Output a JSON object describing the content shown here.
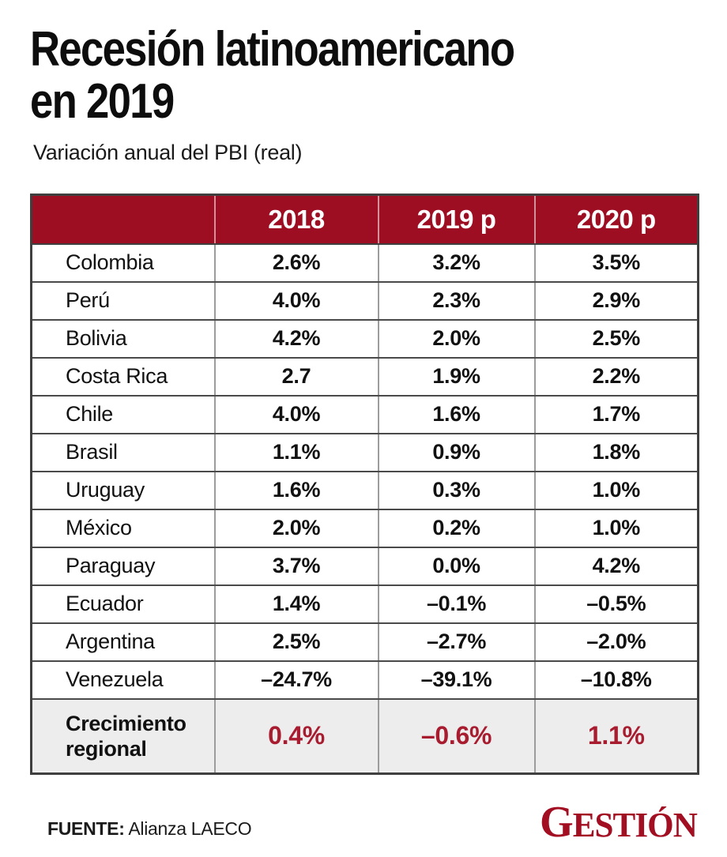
{
  "page": {
    "title_line1": "Recesión latinoamericano",
    "title_line2": "en 2019",
    "subtitle": "Variación anual del PBI (real)"
  },
  "table": {
    "headers": [
      "",
      "2018",
      "2019 p",
      "2020 p"
    ],
    "rows": [
      {
        "label": "Colombia",
        "values": [
          "2.6%",
          "3.2%",
          "3.5%"
        ]
      },
      {
        "label": "Perú",
        "values": [
          "4.0%",
          "2.3%",
          "2.9%"
        ]
      },
      {
        "label": "Bolivia",
        "values": [
          "4.2%",
          "2.0%",
          "2.5%"
        ]
      },
      {
        "label": "Costa Rica",
        "values": [
          "2.7",
          "1.9%",
          "2.2%"
        ]
      },
      {
        "label": "Chile",
        "values": [
          "4.0%",
          "1.6%",
          "1.7%"
        ]
      },
      {
        "label": "Brasil",
        "values": [
          "1.1%",
          "0.9%",
          "1.8%"
        ]
      },
      {
        "label": "Uruguay",
        "values": [
          "1.6%",
          "0.3%",
          "1.0%"
        ]
      },
      {
        "label": "México",
        "values": [
          "2.0%",
          "0.2%",
          "1.0%"
        ]
      },
      {
        "label": "Paraguay",
        "values": [
          "3.7%",
          "0.0%",
          "4.2%"
        ]
      },
      {
        "label": "Ecuador",
        "values": [
          "1.4%",
          "–0.1%",
          "–0.5%"
        ]
      },
      {
        "label": "Argentina",
        "values": [
          "2.5%",
          "–2.7%",
          "–2.0%"
        ]
      },
      {
        "label": "Venezuela",
        "values": [
          "–24.7%",
          "–39.1%",
          "–10.8%"
        ]
      }
    ],
    "summary": {
      "label": "Crecimiento regional",
      "values": [
        "0.4%",
        "–0.6%",
        "1.1%"
      ]
    }
  },
  "footer": {
    "source_label": "FUENTE:",
    "source_value": " Alianza LAECO",
    "brand": "GESTIÓN"
  },
  "colors": {
    "header_red": "#9E0E23",
    "accent_red": "#A81C30",
    "logo_red": "#A30F22",
    "summary_bg": "#EDEDED"
  },
  "chart_data": {
    "type": "table",
    "title": "Recesión latinoamericano en 2019",
    "subtitle": "Variación anual del PBI (real)",
    "columns": [
      "",
      "2018",
      "2019 p",
      "2020 p"
    ],
    "rows": [
      [
        "Colombia",
        "2.6%",
        "3.2%",
        "3.5%"
      ],
      [
        "Perú",
        "4.0%",
        "2.3%",
        "2.9%"
      ],
      [
        "Bolivia",
        "4.2%",
        "2.0%",
        "2.5%"
      ],
      [
        "Costa Rica",
        "2.7",
        "1.9%",
        "2.2%"
      ],
      [
        "Chile",
        "4.0%",
        "1.6%",
        "1.7%"
      ],
      [
        "Brasil",
        "1.1%",
        "0.9%",
        "1.8%"
      ],
      [
        "Uruguay",
        "1.6%",
        "0.3%",
        "1.0%"
      ],
      [
        "México",
        "2.0%",
        "0.2%",
        "1.0%"
      ],
      [
        "Paraguay",
        "3.7%",
        "0.0%",
        "4.2%"
      ],
      [
        "Ecuador",
        "1.4%",
        "-0.1%",
        "-0.5%"
      ],
      [
        "Argentina",
        "2.5%",
        "-2.7%",
        "-2.0%"
      ],
      [
        "Venezuela",
        "-24.7%",
        "-39.1%",
        "-10.8%"
      ]
    ],
    "summary_row": [
      "Crecimiento regional",
      "0.4%",
      "-0.6%",
      "1.1%"
    ],
    "source": "FUENTE: Alianza LAECO",
    "brand": "GESTIÓN"
  }
}
